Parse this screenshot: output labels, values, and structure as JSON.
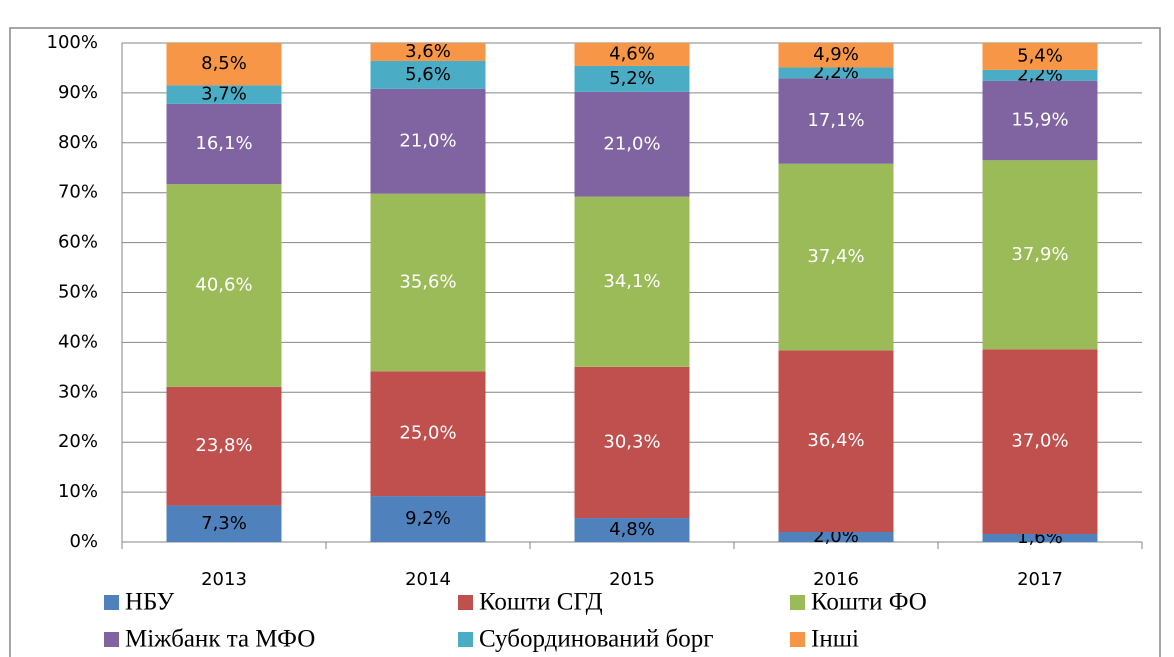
{
  "chart_data": {
    "type": "stacked_bar",
    "categories": [
      "2013",
      "2014",
      "2015",
      "2016",
      "2017"
    ],
    "series": [
      {
        "name": "НБУ",
        "color": "#4f81bd",
        "label_color": "#000000",
        "values": [
          7.3,
          9.2,
          4.8,
          2.0,
          1.6
        ],
        "value_labels": [
          "7,3%",
          "9,2%",
          "4,8%",
          "2,0%",
          "1,6%"
        ]
      },
      {
        "name": "Кошти СГД",
        "color": "#c0504d",
        "label_color": "#ffffff",
        "values": [
          23.8,
          25.0,
          30.3,
          36.4,
          37.0
        ],
        "value_labels": [
          "23,8%",
          "25,0%",
          "30,3%",
          "36,4%",
          "37,0%"
        ]
      },
      {
        "name": "Кошти ФО",
        "color": "#9bbb59",
        "label_color": "#ffffff",
        "values": [
          40.6,
          35.6,
          34.1,
          37.4,
          37.9
        ],
        "value_labels": [
          "40,6%",
          "35,6%",
          "34,1%",
          "37,4%",
          "37,9%"
        ]
      },
      {
        "name": "Міжбанк та МФО",
        "color": "#8064a2",
        "label_color": "#ffffff",
        "values": [
          16.1,
          21.0,
          21.0,
          17.1,
          15.9
        ],
        "value_labels": [
          "16,1%",
          "21,0%",
          "21,0%",
          "17,1%",
          "15,9%"
        ]
      },
      {
        "name": "Субординований борг",
        "color": "#4bacc6",
        "label_color": "#000000",
        "values": [
          3.7,
          5.6,
          5.2,
          2.2,
          2.2
        ],
        "value_labels": [
          "3,7%",
          "5,6%",
          "5,2%",
          "2,2%",
          "2,2%"
        ]
      },
      {
        "name": "Інші",
        "color": "#f79646",
        "label_color": "#000000",
        "values": [
          8.5,
          3.6,
          4.6,
          4.9,
          5.4
        ],
        "value_labels": [
          "8,5%",
          "3,6%",
          "4,6%",
          "4,9%",
          "5,4%"
        ]
      }
    ],
    "ylim": [
      0,
      100
    ],
    "yticks": [
      {
        "value": 0,
        "label": "0%"
      },
      {
        "value": 10,
        "label": "10%"
      },
      {
        "value": 20,
        "label": "20%"
      },
      {
        "value": 30,
        "label": "30%"
      },
      {
        "value": 40,
        "label": "40%"
      },
      {
        "value": 50,
        "label": "50%"
      },
      {
        "value": 60,
        "label": "60%"
      },
      {
        "value": 70,
        "label": "70%"
      },
      {
        "value": 80,
        "label": "80%"
      },
      {
        "value": 90,
        "label": "90%"
      },
      {
        "value": 100,
        "label": "100%"
      }
    ],
    "grid": true,
    "legend": "bottom"
  }
}
